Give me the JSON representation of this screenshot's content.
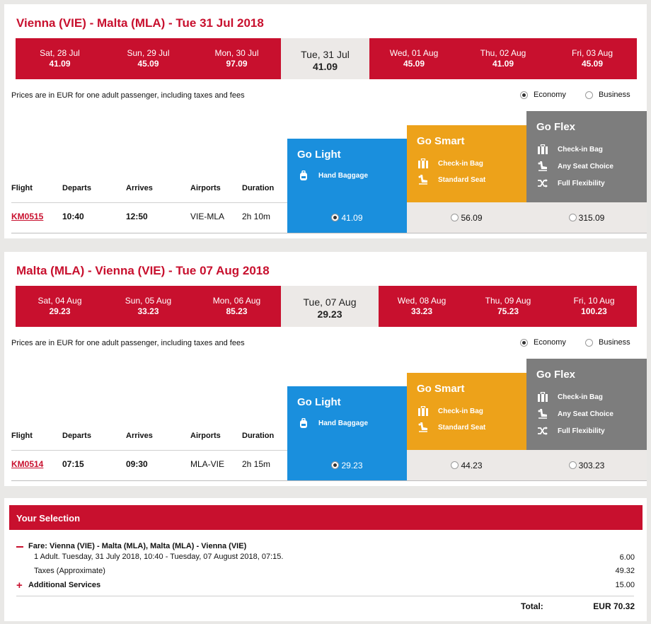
{
  "outbound": {
    "route": "Vienna (VIE) - Malta (MLA) - Tue 31 Jul 2018",
    "dates": [
      {
        "day": "Sat, 28 Jul",
        "price": "41.09"
      },
      {
        "day": "Sun, 29 Jul",
        "price": "45.09"
      },
      {
        "day": "Mon, 30 Jul",
        "price": "97.09"
      },
      {
        "day": "Tue, 31 Jul",
        "price": "41.09"
      },
      {
        "day": "Wed, 01 Aug",
        "price": "45.09"
      },
      {
        "day": "Thu, 02 Aug",
        "price": "41.09"
      },
      {
        "day": "Fri, 03 Aug",
        "price": "45.09"
      }
    ],
    "note": "Prices are in EUR for one adult passenger, including taxes and fees",
    "cabins": {
      "economy": "Economy",
      "business": "Business",
      "selected": "economy"
    },
    "headers": {
      "flight": "Flight",
      "departs": "Departs",
      "arrives": "Arrives",
      "airports": "Airports",
      "duration": "Duration"
    },
    "flight": {
      "number": "KM0515",
      "departs": "10:40",
      "arrives": "12:50",
      "airports": "VIE-MLA",
      "duration": "2h 10m"
    },
    "prices": {
      "light": "41.09",
      "smart": "56.09",
      "flex": "315.09"
    }
  },
  "inbound": {
    "route": "Malta (MLA) - Vienna (VIE) - Tue 07 Aug 2018",
    "dates": [
      {
        "day": "Sat, 04 Aug",
        "price": "29.23"
      },
      {
        "day": "Sun, 05 Aug",
        "price": "33.23"
      },
      {
        "day": "Mon, 06 Aug",
        "price": "85.23"
      },
      {
        "day": "Tue, 07 Aug",
        "price": "29.23"
      },
      {
        "day": "Wed, 08 Aug",
        "price": "33.23"
      },
      {
        "day": "Thu, 09 Aug",
        "price": "75.23"
      },
      {
        "day": "Fri, 10 Aug",
        "price": "100.23"
      }
    ],
    "note": "Prices are in EUR for one adult passenger, including taxes and fees",
    "cabins": {
      "economy": "Economy",
      "business": "Business",
      "selected": "economy"
    },
    "headers": {
      "flight": "Flight",
      "departs": "Departs",
      "arrives": "Arrives",
      "airports": "Airports",
      "duration": "Duration"
    },
    "flight": {
      "number": "KM0514",
      "departs": "07:15",
      "arrives": "09:30",
      "airports": "MLA-VIE",
      "duration": "2h 15m"
    },
    "prices": {
      "light": "29.23",
      "smart": "44.23",
      "flex": "303.23"
    }
  },
  "fares": {
    "light": {
      "name": "Go Light",
      "features": [
        "Hand Baggage"
      ],
      "icons": [
        "backpack-icon"
      ],
      "color": "#1a8fdd"
    },
    "smart": {
      "name": "Go Smart",
      "features": [
        "Check-in Bag",
        "Standard Seat"
      ],
      "icons": [
        "suitcase-icon",
        "seat-icon"
      ],
      "color": "#eda21a"
    },
    "flex": {
      "name": "Go Flex",
      "features": [
        "Check-in Bag",
        "Any Seat Choice",
        "Full Flexibility"
      ],
      "icons": [
        "suitcase-icon",
        "seat-icon",
        "shuffle-icon"
      ],
      "color": "#7d7d7d"
    }
  },
  "selection": {
    "title": "Your Selection",
    "fare_label": "Fare: Vienna (VIE) - Malta (MLA), Malta (MLA) - Vienna (VIE)",
    "fare_detail": "1 Adult. Tuesday, 31 July 2018, 10:40 - Tuesday, 07 August 2018, 07:15.",
    "fare_amount": "6.00",
    "taxes_label": "Taxes (Approximate)",
    "taxes_amount": "49.32",
    "additional_label": "Additional Services",
    "additional_amount": "15.00",
    "total_label": "Total:",
    "total_amount": "EUR 70.32"
  },
  "colors": {
    "brand_red": "#c8102e",
    "selected_date_bg": "#ece9e7"
  }
}
